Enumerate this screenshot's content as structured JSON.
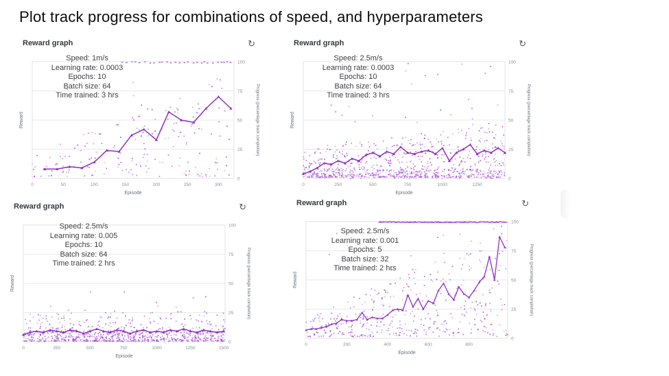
{
  "page": {
    "title": "Plot track progress for combinations of speed, and hyperparameters"
  },
  "icons": {
    "refresh_glyph": "↻"
  },
  "colors": {
    "line": "#8e2fc3",
    "scatter": "#a44fd2",
    "top_row_dots": "#a13fd4",
    "grid": "#e9e9e9",
    "plot_border": "#e3e3e3",
    "axis_text": "#879196",
    "axis_label_text": "#687078",
    "annotation_text": "#3f4043",
    "panel_title_text": "#333740"
  },
  "chart_data": [
    {
      "type": "scatter",
      "title": "Reward graph",
      "annotations": [
        "Speed: 1m/s",
        "Learning rate: 0.0003",
        "Epochs: 10",
        "Batch size: 64",
        "Time trained: 3 hrs"
      ],
      "xlabel": "Episode",
      "ylabel_left": "Reward",
      "ylabel_right": "Progress (percentage track completion)",
      "x_ticks": [
        0,
        50,
        100,
        150,
        200,
        250,
        300
      ],
      "y_ticks": [
        0,
        25,
        50,
        75,
        100
      ],
      "xlim": [
        0,
        325
      ],
      "ylim": [
        0,
        100
      ],
      "grid": true,
      "line": {
        "x": [
          20,
          40,
          60,
          80,
          100,
          120,
          140,
          160,
          180,
          200,
          220,
          240,
          260,
          280,
          300,
          320
        ],
        "y": [
          8,
          8,
          10,
          9,
          14,
          24,
          23,
          37,
          42,
          33,
          57,
          50,
          48,
          60,
          70,
          60
        ]
      },
      "scatter": {
        "seed": 7,
        "count": 190,
        "base": 1.5,
        "spread_start": 18,
        "spread_end": 90,
        "pow": 1.5,
        "outliers": {
          "count": 9,
          "y_min": 55,
          "y_max": 100
        },
        "top_row": {
          "from": 145,
          "to": 323,
          "step": 6,
          "jitter": 4
        }
      }
    },
    {
      "type": "scatter",
      "title": "Reward graph",
      "annotations": [
        "Speed: 2.5m/s",
        "Learning rate: 0.0003",
        "Epochs: 10",
        "Batch size: 64",
        "Time trained: 3 hrs"
      ],
      "xlabel": "Episode",
      "ylabel_left": "Reward",
      "ylabel_right": "Progress (percentage track completion)",
      "x_ticks": [
        0,
        250,
        500,
        750,
        1000,
        1250
      ],
      "y_ticks": [
        0,
        25,
        50,
        75,
        100
      ],
      "xlim": [
        0,
        1450
      ],
      "ylim": [
        0,
        100
      ],
      "grid": true,
      "line": {
        "x": [
          0,
          50,
          100,
          150,
          200,
          250,
          300,
          350,
          400,
          450,
          500,
          550,
          600,
          650,
          700,
          750,
          800,
          850,
          900,
          950,
          1000,
          1050,
          1100,
          1150,
          1200,
          1250,
          1300,
          1350,
          1400,
          1450
        ],
        "y": [
          4,
          6,
          9,
          13,
          12,
          15,
          13,
          17,
          15,
          20,
          22,
          19,
          23,
          21,
          27,
          22,
          21,
          23,
          24,
          21,
          26,
          15,
          22,
          25,
          29,
          21,
          24,
          22,
          26,
          22
        ]
      },
      "scatter": {
        "seed": 13,
        "count": 620,
        "base": 1,
        "spread_start": 26,
        "spread_end": 46,
        "pow": 2.1,
        "outliers": {
          "count": 28,
          "y_min": 45,
          "y_max": 100
        },
        "bottom": {
          "count": 260,
          "max": 8
        }
      }
    },
    {
      "type": "scatter",
      "title": "Reward graph",
      "annotations": [
        "Speed: 2.5m/s",
        "Learning rate: 0.005",
        "Epochs: 10",
        "Batch size: 64",
        "Time trained: 2 hrs"
      ],
      "xlabel": "Episode",
      "ylabel_left": "Reward",
      "ylabel_right": "Progress (percentage track completion)",
      "x_ticks": [
        0,
        250,
        500,
        750,
        1000,
        1250,
        1500
      ],
      "y_ticks": [
        0,
        25,
        50,
        75,
        100
      ],
      "xlim": [
        0,
        1510
      ],
      "ylim": [
        0,
        100
      ],
      "grid": true,
      "line": {
        "x": [
          0,
          50,
          100,
          150,
          200,
          250,
          300,
          350,
          400,
          450,
          500,
          550,
          600,
          650,
          700,
          750,
          800,
          850,
          900,
          950,
          1000,
          1050,
          1100,
          1150,
          1200,
          1250,
          1300,
          1350,
          1400,
          1450,
          1500
        ],
        "y": [
          6,
          8,
          9,
          8,
          10,
          9,
          8,
          10,
          9,
          7,
          9,
          11,
          9,
          8,
          10,
          9,
          7,
          9,
          10,
          8,
          9,
          8,
          10,
          9,
          11,
          9,
          8,
          10,
          9,
          8,
          9
        ]
      },
      "scatter": {
        "seed": 29,
        "count": 520,
        "base": 0.5,
        "spread_start": 24,
        "spread_end": 26,
        "pow": 2.6,
        "outliers": {
          "count": 12,
          "y_min": 25,
          "y_max": 45
        },
        "bottom": {
          "count": 320,
          "max": 9
        }
      }
    },
    {
      "type": "scatter",
      "title": "Reward graph",
      "annotations": [
        "Speed: 2.5m/s",
        "Learning rate: 0.001",
        "Epochs: 5",
        "Batch size: 32",
        "Time trained: 2 hrs"
      ],
      "xlabel": "Episode",
      "ylabel_left": "Reward",
      "ylabel_right": "Progress (percentage track completion)",
      "x_ticks": [
        0,
        200,
        400,
        600,
        800
      ],
      "y_ticks": [
        0,
        25,
        50,
        75,
        100
      ],
      "xlim": [
        0,
        990
      ],
      "ylim": [
        0,
        100
      ],
      "grid": true,
      "line": {
        "x": [
          0,
          25,
          50,
          75,
          100,
          125,
          150,
          175,
          200,
          225,
          250,
          275,
          300,
          325,
          350,
          375,
          400,
          425,
          450,
          475,
          500,
          525,
          550,
          575,
          600,
          625,
          650,
          675,
          700,
          725,
          750,
          775,
          800,
          825,
          850,
          875,
          900,
          925,
          950,
          975
        ],
        "y": [
          7,
          8,
          8,
          9,
          10,
          12,
          13,
          16,
          15,
          15,
          16,
          22,
          16,
          18,
          17,
          17,
          20,
          24,
          25,
          24,
          37,
          27,
          34,
          25,
          32,
          30,
          41,
          47,
          38,
          33,
          44,
          38,
          35,
          41,
          48,
          53,
          70,
          50,
          87,
          78
        ]
      },
      "scatter": {
        "seed": 41,
        "count": 410,
        "base": 1.5,
        "spread_start": 14,
        "spread_end": 98,
        "pow": 1.7,
        "outliers": {
          "count": 10,
          "y_min": 55,
          "y_max": 95
        },
        "top_row": {
          "from": 360,
          "to": 985,
          "step": 4,
          "jitter": 3
        }
      }
    }
  ]
}
